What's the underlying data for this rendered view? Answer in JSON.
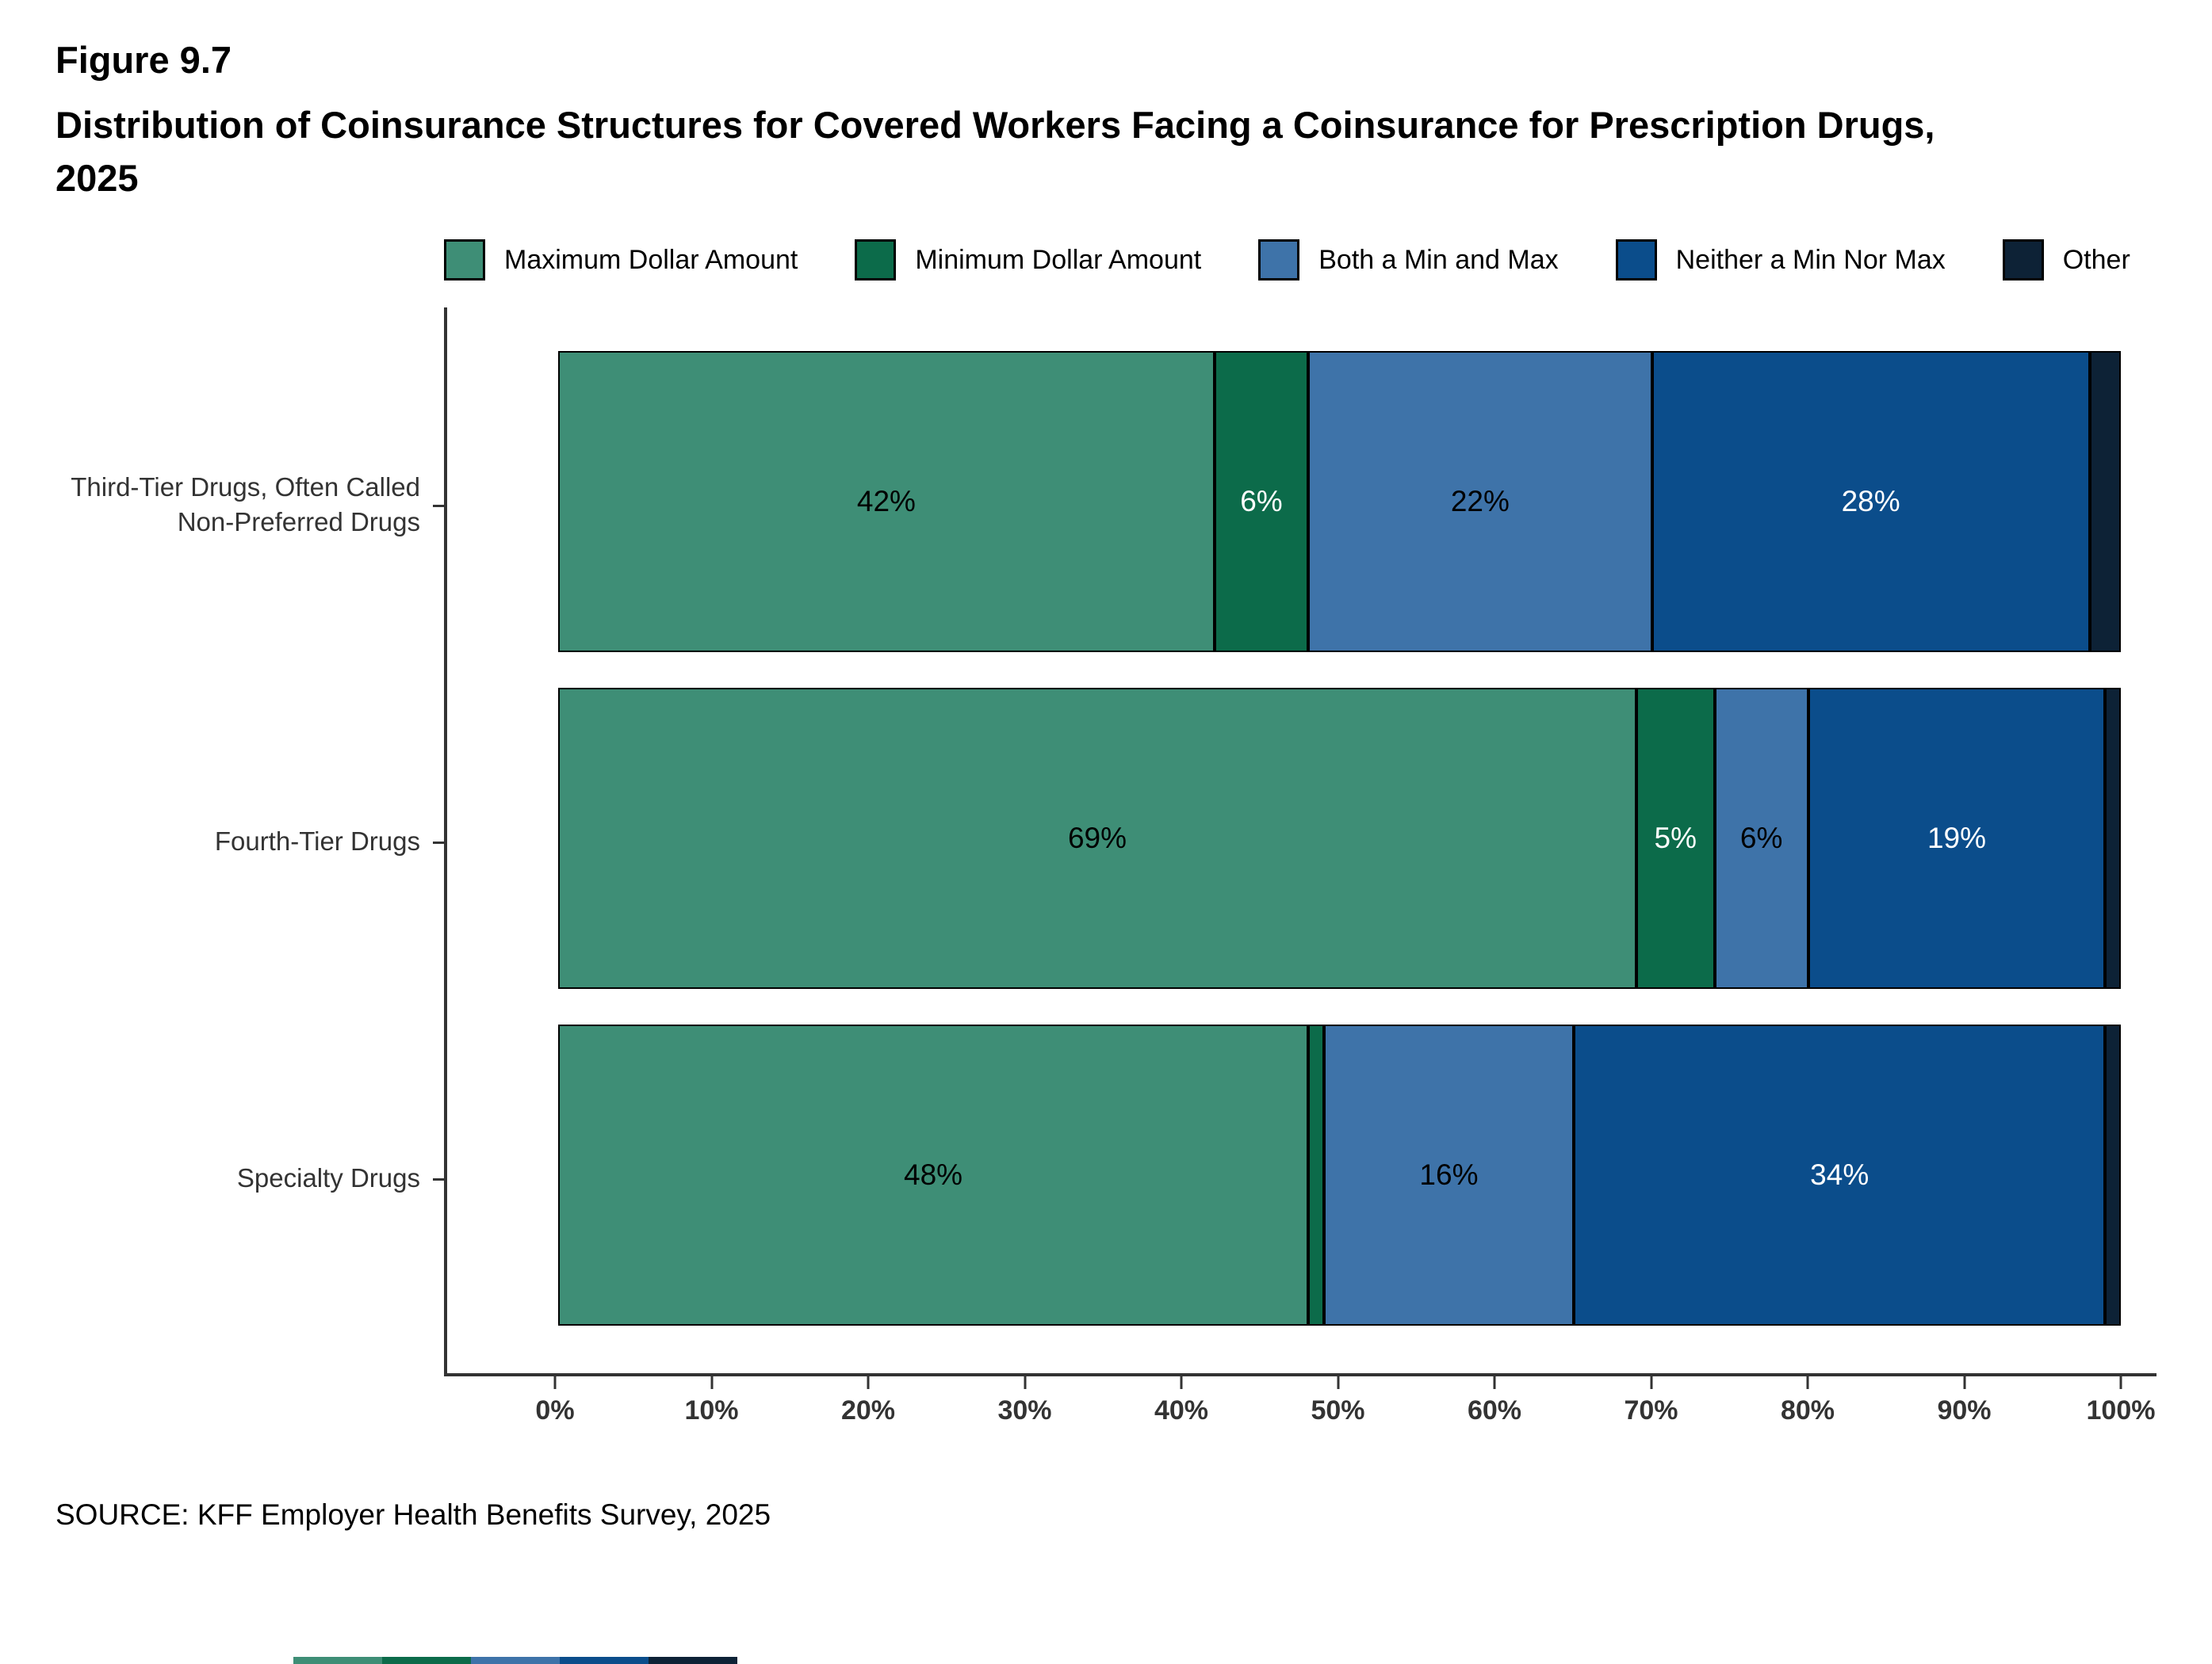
{
  "header": {
    "figure_label": "Figure 9.7",
    "title": "Distribution of Coinsurance Structures for Covered Workers Facing a Coinsurance for Prescription Drugs, 2025"
  },
  "source": "SOURCE: KFF Employer Health Benefits Survey, 2025",
  "chart_data": {
    "type": "bar",
    "orientation": "horizontal-stacked",
    "title": "Figure 9.7",
    "subtitle": "Distribution of Coinsurance Structures for Covered Workers Facing a Coinsurance for Prescription Drugs, 2025",
    "categories": [
      "Third-Tier Drugs, Often Called\nNon-Preferred Drugs",
      "Fourth-Tier Drugs",
      "Specialty Drugs"
    ],
    "series": [
      {
        "name": "Maximum Dollar Amount",
        "color": "#3e8e76",
        "label_color": "#000000",
        "values": [
          42,
          69,
          48
        ],
        "labels": [
          "42%",
          "69%",
          "48%"
        ]
      },
      {
        "name": "Minimum Dollar Amount",
        "color": "#0c6b4a",
        "label_color": "#ffffff",
        "values": [
          6,
          5,
          1
        ],
        "labels": [
          "6%",
          "5%",
          ""
        ]
      },
      {
        "name": "Both a Min and Max",
        "color": "#3e73a9",
        "label_color": "#000000",
        "values": [
          22,
          6,
          16
        ],
        "labels": [
          "22%",
          "6%",
          "16%"
        ]
      },
      {
        "name": "Neither a Min Nor Max",
        "color": "#0b4d8b",
        "label_color": "#ffffff",
        "values": [
          28,
          19,
          34
        ],
        "labels": [
          "28%",
          "19%",
          "34%"
        ]
      },
      {
        "name": "Other",
        "color": "#0d2236",
        "label_color": "#ffffff",
        "values": [
          2,
          1,
          1
        ],
        "labels": [
          "",
          "",
          ""
        ]
      }
    ],
    "x_ticks": [
      "0%",
      "10%",
      "20%",
      "30%",
      "40%",
      "50%",
      "60%",
      "70%",
      "80%",
      "90%",
      "100%"
    ],
    "xlim": [
      0,
      100
    ],
    "legend_position": "top",
    "grid": false,
    "source": "SOURCE: KFF Employer Health Benefits Survey, 2025"
  }
}
